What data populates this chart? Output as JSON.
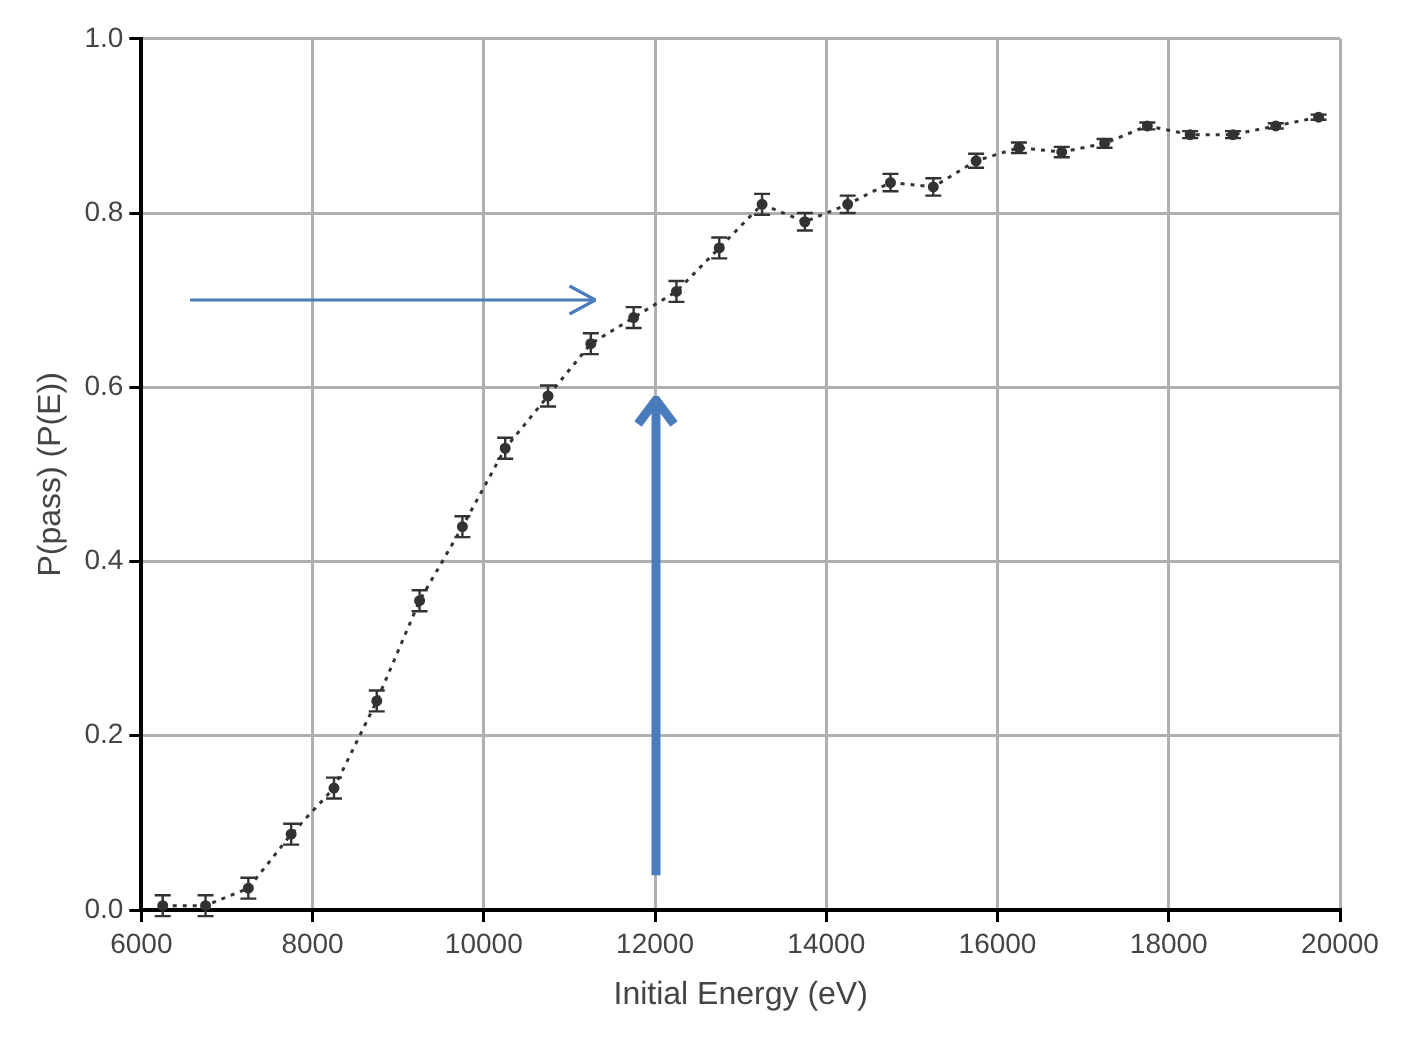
{
  "chart_data": {
    "type": "line",
    "xlabel": "Initial Energy (eV)",
    "ylabel": "P(pass) (P(E))",
    "x": [
      6250,
      6750,
      7250,
      7750,
      8250,
      8750,
      9250,
      9750,
      10250,
      10750,
      11250,
      11750,
      12250,
      12750,
      13250,
      13750,
      14250,
      14750,
      15250,
      15750,
      16250,
      16750,
      17250,
      17750,
      18250,
      18750,
      19250,
      19750
    ],
    "series": [
      {
        "color": "#333333",
        "values": [
          0.005,
          0.005,
          0.025,
          0.087,
          0.14,
          0.24,
          0.355,
          0.44,
          0.53,
          0.59,
          0.65,
          0.68,
          0.71,
          0.76,
          0.81,
          0.79,
          0.81,
          0.835,
          0.83,
          0.86,
          0.875,
          0.87,
          0.88,
          0.9,
          0.89,
          0.89,
          0.9,
          0.91
        ],
        "errors": [
          0.012,
          0.012,
          0.012,
          0.012,
          0.012,
          0.012,
          0.012,
          0.012,
          0.012,
          0.012,
          0.012,
          0.012,
          0.012,
          0.012,
          0.012,
          0.01,
          0.01,
          0.01,
          0.01,
          0.008,
          0.006,
          0.006,
          0.005,
          0.004,
          0.004,
          0.004,
          0.003,
          0.003
        ]
      }
    ],
    "xlim": [
      6000,
      20000
    ],
    "xticks": [
      6000,
      8000,
      10000,
      12000,
      14000,
      16000,
      18000,
      20000
    ],
    "ylim": [
      0,
      1
    ],
    "yticks": [
      {
        "value": 0,
        "label": "0.0"
      },
      {
        "value": 0.2,
        "label": "0.2"
      },
      {
        "value": 0.4,
        "label": "0.4"
      },
      {
        "value": 0.6,
        "label": "0.6"
      },
      {
        "value": 0.8,
        "label": "0.8"
      },
      {
        "value": 1,
        "label": "1.0"
      }
    ],
    "grid": true,
    "legend": false,
    "marker": "circle",
    "line_style": "dotted"
  }
}
